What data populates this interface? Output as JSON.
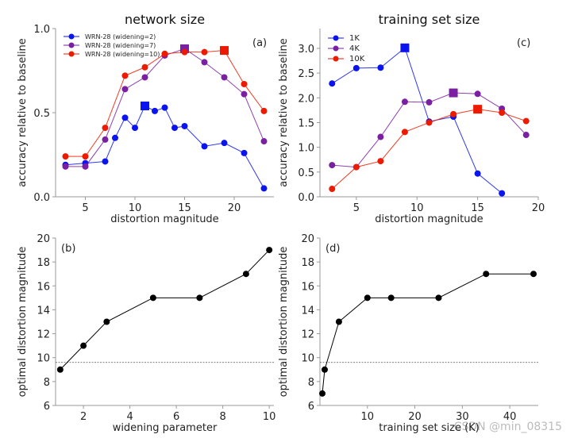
{
  "colors": {
    "blue": "#0a14f0",
    "purple": "#7b1fa2",
    "red": "#ee1a00",
    "black": "#000000"
  },
  "watermark": "CSDN @min_08315",
  "chart_data": [
    {
      "id": "a",
      "type": "line",
      "title": "network size",
      "panel_label": "(a)",
      "xlabel": "distortion magnitude",
      "ylabel": "accuracy relative to baseline",
      "xlim": [
        2,
        24
      ],
      "ylim": [
        0,
        1
      ],
      "xticks": [
        5,
        10,
        15,
        20
      ],
      "yticks": [
        0.0,
        0.5,
        1.0
      ],
      "ytick_labels": [
        "0.0",
        "0.5",
        "1.0"
      ],
      "legend": "top-left",
      "series": [
        {
          "name": "WRN-28 (widening=2)",
          "color": "blue",
          "x": [
            3,
            5,
            7,
            8,
            9,
            10,
            11,
            12,
            13,
            14,
            15,
            17,
            19,
            21,
            23
          ],
          "y": [
            0.19,
            0.2,
            0.21,
            0.35,
            0.47,
            0.41,
            0.54,
            0.51,
            0.53,
            0.41,
            0.42,
            0.3,
            0.32,
            0.26,
            0.05
          ],
          "best_x": 11
        },
        {
          "name": "WRN-28 (widening=7)",
          "color": "purple",
          "x": [
            3,
            5,
            7,
            9,
            11,
            13,
            15,
            17,
            19,
            21,
            23
          ],
          "y": [
            0.18,
            0.18,
            0.34,
            0.64,
            0.71,
            0.84,
            0.88,
            0.8,
            0.71,
            0.61,
            0.33
          ],
          "best_x": 15
        },
        {
          "name": "WRN-28 (widening=10)",
          "color": "red",
          "x": [
            3,
            5,
            7,
            9,
            11,
            13,
            15,
            17,
            19,
            21,
            23
          ],
          "y": [
            0.24,
            0.24,
            0.41,
            0.72,
            0.77,
            0.85,
            0.86,
            0.86,
            0.87,
            0.67,
            0.51
          ],
          "best_x": 19
        }
      ]
    },
    {
      "id": "c",
      "type": "line",
      "title": "training set size",
      "panel_label": "(c)",
      "xlabel": "distortion magnitude",
      "ylabel": "accuracy relative to baseline",
      "xlim": [
        2,
        20
      ],
      "ylim": [
        0,
        3.4
      ],
      "xticks": [
        5,
        10,
        15,
        20
      ],
      "yticks": [
        0,
        0.5,
        1,
        1.5,
        2,
        2.5,
        3
      ],
      "ytick_labels": [
        "0.0",
        "0.5",
        "1.0",
        "1.5",
        "2.0",
        "2.5",
        "3.0"
      ],
      "legend": "top-left",
      "series": [
        {
          "name": "1K",
          "color": "blue",
          "x": [
            3,
            5,
            7,
            9,
            11,
            13,
            15,
            17
          ],
          "y": [
            2.29,
            2.6,
            2.61,
            3.01,
            1.52,
            1.62,
            0.47,
            0.07
          ],
          "best_x": 9
        },
        {
          "name": "4K",
          "color": "purple",
          "x": [
            3,
            5,
            7,
            9,
            11,
            13,
            15,
            17,
            19
          ],
          "y": [
            0.64,
            0.6,
            1.21,
            1.92,
            1.91,
            2.1,
            2.08,
            1.78,
            1.25
          ],
          "best_x": 13
        },
        {
          "name": "10K",
          "color": "red",
          "x": [
            3,
            5,
            7,
            9,
            11,
            13,
            15,
            17,
            19
          ],
          "y": [
            0.16,
            0.6,
            0.72,
            1.31,
            1.5,
            1.67,
            1.77,
            1.7,
            1.53
          ],
          "best_x": 15
        }
      ]
    },
    {
      "id": "b",
      "type": "line",
      "title": "",
      "panel_label": "(b)",
      "xlabel": "widening parameter",
      "ylabel": "optimal distortion magnitude",
      "xlim": [
        0.8,
        10.2
      ],
      "ylim": [
        6,
        20
      ],
      "xticks": [
        2,
        4,
        6,
        8,
        10
      ],
      "yticks": [
        6,
        8,
        10,
        12,
        14,
        16,
        18,
        20
      ],
      "ytick_labels": [
        "6",
        "8",
        "10",
        "12",
        "14",
        "16",
        "18",
        "20"
      ],
      "hline": 9.6,
      "series": [
        {
          "color": "black",
          "x": [
            1,
            2,
            3,
            5,
            7,
            9,
            10
          ],
          "y": [
            9,
            11,
            13,
            15,
            15,
            17,
            19
          ]
        }
      ]
    },
    {
      "id": "d",
      "type": "line",
      "title": "",
      "panel_label": "(d)",
      "xlabel": "training set size (K)",
      "ylabel": "optimal distortion magnitude",
      "xlim": [
        0,
        46
      ],
      "ylim": [
        6,
        20
      ],
      "xticks": [
        10,
        20,
        30,
        40
      ],
      "yticks": [
        6,
        8,
        10,
        12,
        14,
        16,
        18,
        20
      ],
      "ytick_labels": [
        "6",
        "8",
        "10",
        "12",
        "14",
        "16",
        "18",
        "20"
      ],
      "hline": 9.6,
      "series": [
        {
          "color": "black",
          "x": [
            0.5,
            1,
            4,
            10,
            15,
            25,
            35,
            45
          ],
          "y": [
            7,
            9,
            13,
            15,
            15,
            15,
            17,
            17
          ]
        }
      ]
    }
  ]
}
